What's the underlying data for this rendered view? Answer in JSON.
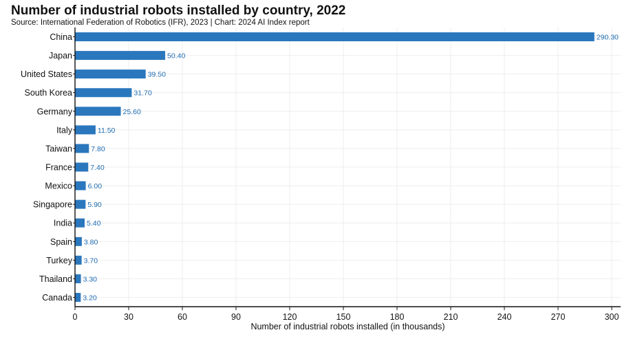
{
  "title": "Number of industrial robots installed by country, 2022",
  "subtitle": "Source: International Federation of Robotics (IFR), 2023 | Chart: 2024 AI Index report",
  "colors": {
    "bar": "#2a77bd",
    "data_label": "#1f6cb3",
    "grid": "#eeeeee",
    "axis": "#111111"
  },
  "chart_data": {
    "type": "bar",
    "orientation": "horizontal",
    "categories": [
      "China",
      "Japan",
      "United States",
      "South Korea",
      "Germany",
      "Italy",
      "Taiwan",
      "France",
      "Mexico",
      "Singapore",
      "India",
      "Spain",
      "Turkey",
      "Thailand",
      "Canada"
    ],
    "values": [
      290.3,
      50.4,
      39.5,
      31.7,
      25.6,
      11.5,
      7.8,
      7.4,
      6.0,
      5.9,
      5.4,
      3.8,
      3.7,
      3.3,
      3.2
    ],
    "value_labels": [
      "290.30",
      "50.40",
      "39.50",
      "31.70",
      "25.60",
      "11.50",
      "7.80",
      "7.40",
      "6.00",
      "5.90",
      "5.40",
      "3.80",
      "3.70",
      "3.30",
      "3.20"
    ],
    "xlabel": "Number of industrial robots installed (in thousands)",
    "ylabel": "",
    "xlim": [
      0,
      305
    ],
    "x_ticks": [
      0,
      30,
      60,
      90,
      120,
      150,
      180,
      210,
      240,
      270,
      300
    ],
    "grid": true
  }
}
